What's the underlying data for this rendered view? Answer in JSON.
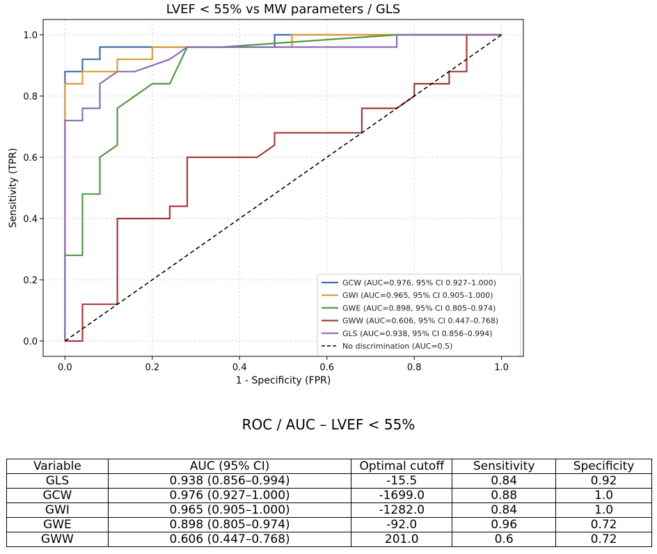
{
  "chart_data": {
    "type": "line",
    "title": "LVEF < 55% vs MW parameters / GLS",
    "xlabel": "1 - Specificity (FPR)",
    "ylabel": "Sensitivity (TPR)",
    "xlim": [
      -0.05,
      1.05
    ],
    "ylim": [
      -0.05,
      1.05
    ],
    "xticks": [
      "0.0",
      "0.2",
      "0.4",
      "0.6",
      "0.8",
      "1.0"
    ],
    "yticks": [
      "0.0",
      "0.2",
      "0.4",
      "0.6",
      "0.8",
      "1.0"
    ],
    "grid": true,
    "legend_position": "lower-right",
    "series": [
      {
        "name": "GCW (AUC=0.976, 95% CI 0.927–1.000)",
        "color": "#3b6ea5",
        "x": [
          0,
          0,
          0.04,
          0.04,
          0.08,
          0.08,
          0.48,
          0.48,
          1.0
        ],
        "y": [
          0,
          0.88,
          0.88,
          0.92,
          0.92,
          0.96,
          0.96,
          1.0,
          1.0
        ]
      },
      {
        "name": "GWI (AUC=0.965, 95% CI 0.905–1.000)",
        "color": "#e09a2f",
        "x": [
          0,
          0,
          0.04,
          0.04,
          0.12,
          0.12,
          0.2,
          0.2,
          0.52,
          0.52,
          1.0
        ],
        "y": [
          0,
          0.84,
          0.84,
          0.88,
          0.88,
          0.92,
          0.92,
          0.96,
          0.96,
          1.0,
          1.0
        ]
      },
      {
        "name": "GWE (AUC=0.898, 95% CI 0.805–0.974)",
        "color": "#4e9a3e",
        "x": [
          0,
          0,
          0.04,
          0.04,
          0.08,
          0.08,
          0.12,
          0.12,
          0.2,
          0.24,
          0.28,
          0.36,
          0.76,
          1.0
        ],
        "y": [
          0,
          0.28,
          0.28,
          0.48,
          0.48,
          0.6,
          0.64,
          0.76,
          0.84,
          0.84,
          0.96,
          0.96,
          1.0,
          1.0
        ]
      },
      {
        "name": "GWW (AUC=0.606, 95% CI 0.447–0.768)",
        "color": "#a33a36",
        "x": [
          0,
          0.04,
          0.04,
          0.12,
          0.12,
          0.24,
          0.24,
          0.28,
          0.28,
          0.44,
          0.48,
          0.48,
          0.68,
          0.68,
          0.76,
          0.8,
          0.8,
          0.88,
          0.88,
          0.92,
          0.92,
          1.0
        ],
        "y": [
          0,
          0,
          0.12,
          0.12,
          0.4,
          0.4,
          0.44,
          0.44,
          0.6,
          0.6,
          0.64,
          0.68,
          0.68,
          0.76,
          0.76,
          0.8,
          0.84,
          0.84,
          0.88,
          0.88,
          1.0,
          1.0
        ]
      },
      {
        "name": "GLS (AUC=0.938, 95% CI 0.856–0.994)",
        "color": "#8b6bb5",
        "x": [
          0,
          0,
          0.04,
          0.04,
          0.08,
          0.08,
          0.12,
          0.16,
          0.24,
          0.28,
          0.36,
          0.76,
          0.76,
          1.0
        ],
        "y": [
          0,
          0.72,
          0.72,
          0.76,
          0.76,
          0.84,
          0.88,
          0.88,
          0.92,
          0.96,
          0.96,
          0.96,
          1.0,
          1.0
        ]
      },
      {
        "name": "No discrimination (AUC=0.5)",
        "color": "#000000",
        "dashed": true,
        "x": [
          0,
          1.0
        ],
        "y": [
          0,
          1.0
        ]
      }
    ]
  },
  "table": {
    "title": "ROC / AUC – LVEF < 55%",
    "headers": [
      "Variable",
      "AUC (95% CI)",
      "Optimal cutoff",
      "Sensitivity",
      "Specificity"
    ],
    "rows": [
      [
        "GLS",
        "0.938 (0.856–0.994)",
        "-15.5",
        "0.84",
        "0.92"
      ],
      [
        "GCW",
        "0.976 (0.927–1.000)",
        "-1699.0",
        "0.88",
        "1.0"
      ],
      [
        "GWI",
        "0.965 (0.905–1.000)",
        "-1282.0",
        "0.84",
        "1.0"
      ],
      [
        "GWE",
        "0.898 (0.805–0.974)",
        "-92.0",
        "0.96",
        "0.72"
      ],
      [
        "GWW",
        "0.606 (0.447–0.768)",
        "201.0",
        "0.6",
        "0.72"
      ]
    ]
  }
}
